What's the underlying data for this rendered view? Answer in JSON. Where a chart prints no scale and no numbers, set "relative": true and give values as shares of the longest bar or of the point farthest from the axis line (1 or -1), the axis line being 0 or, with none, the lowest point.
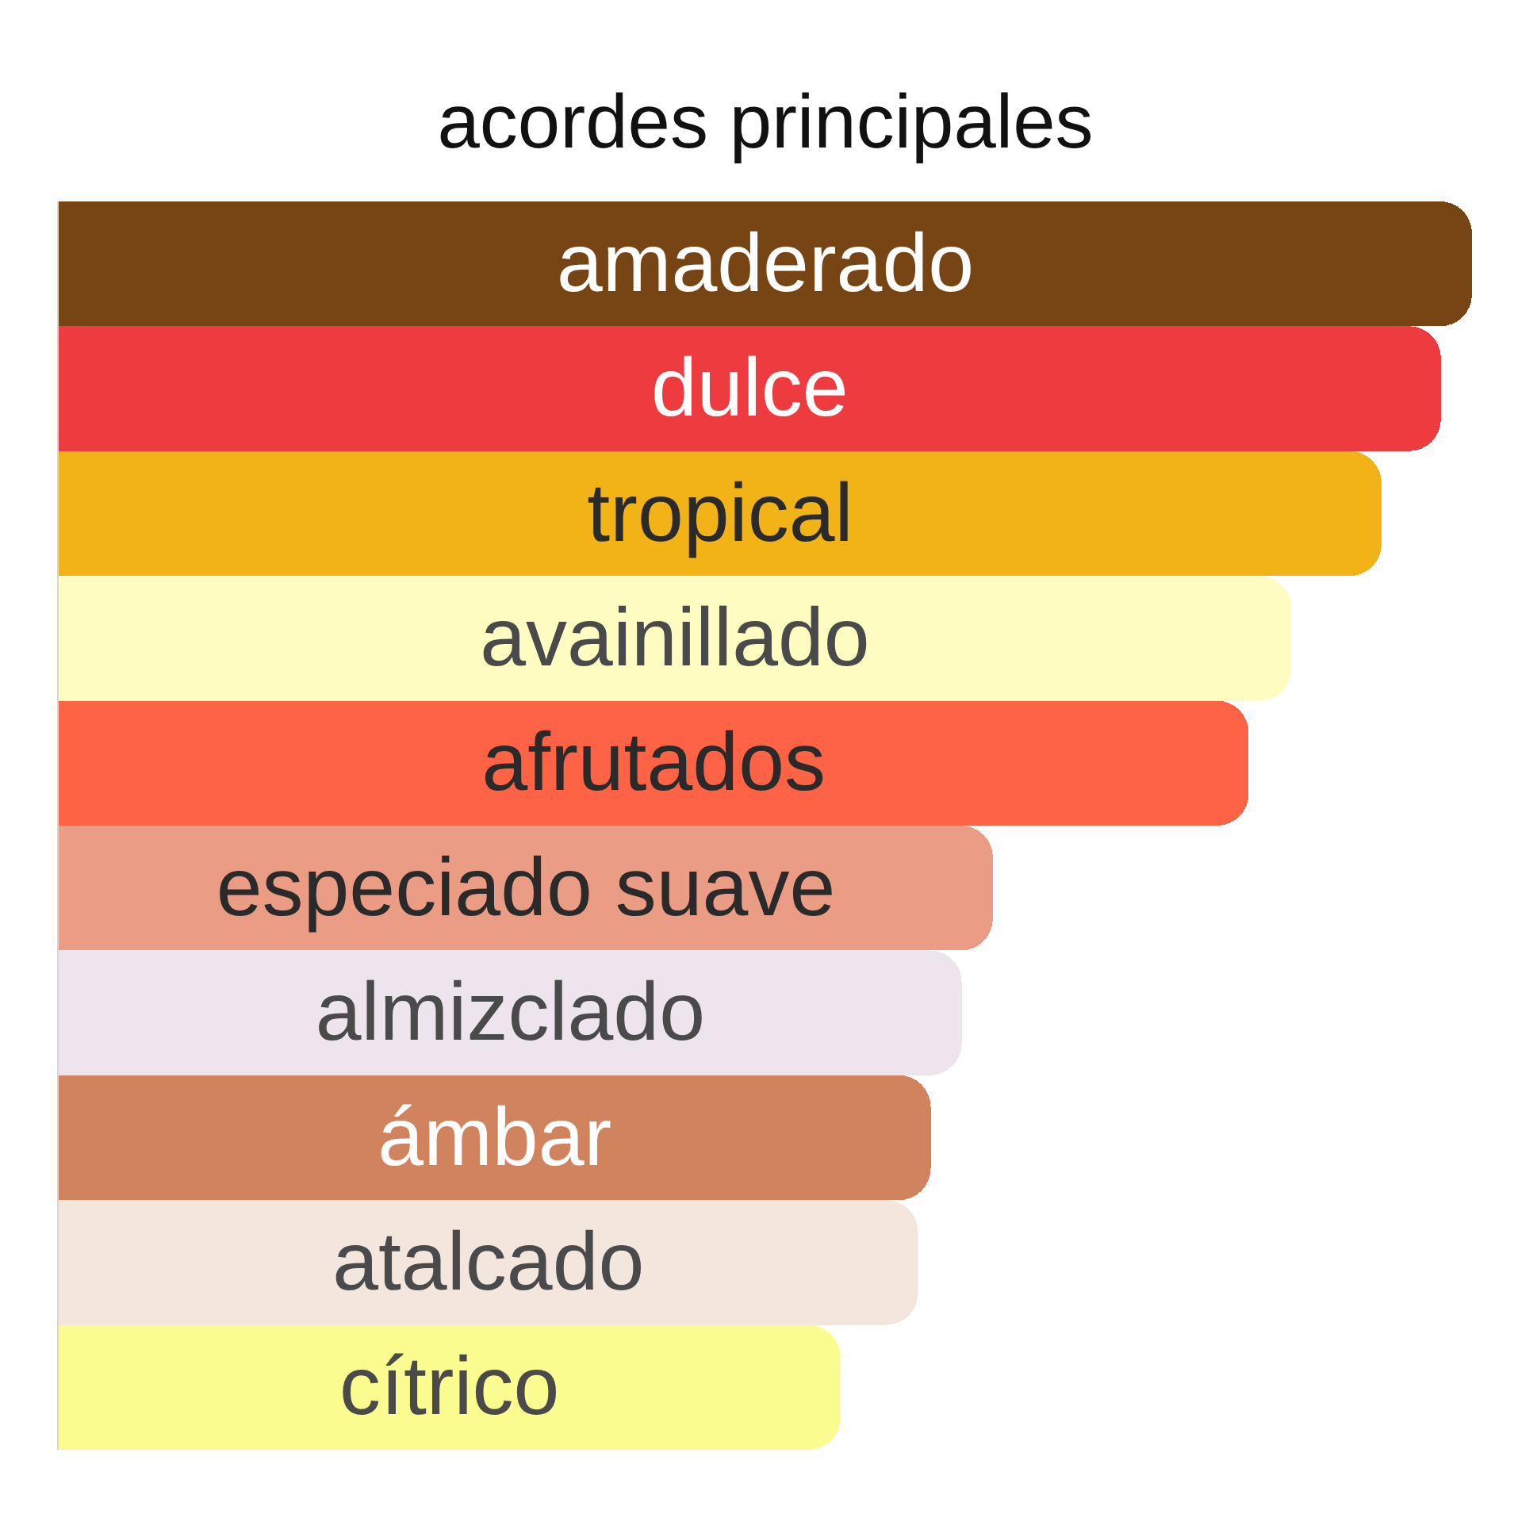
{
  "chart_data": {
    "type": "bar",
    "title": "acordes principales",
    "orientation": "horizontal",
    "relative": true,
    "categories": [
      "amaderado",
      "dulce",
      "tropical",
      "avainillado",
      "afrutados",
      "especiado suave",
      "almizclado",
      "ámbar",
      "atalcado",
      "cítrico"
    ],
    "values": [
      1,
      0.978,
      0.936,
      0.872,
      0.842,
      0.661,
      0.639,
      0.617,
      0.608,
      0.553
    ],
    "colors": [
      "#774414",
      "#ee3b3f",
      "#f2b317",
      "#fffcc1",
      "#fe6346",
      "#ea9c84",
      "#ede4ee",
      "#d0835d",
      "#f3e6dc",
      "#fafc8f"
    ]
  }
}
